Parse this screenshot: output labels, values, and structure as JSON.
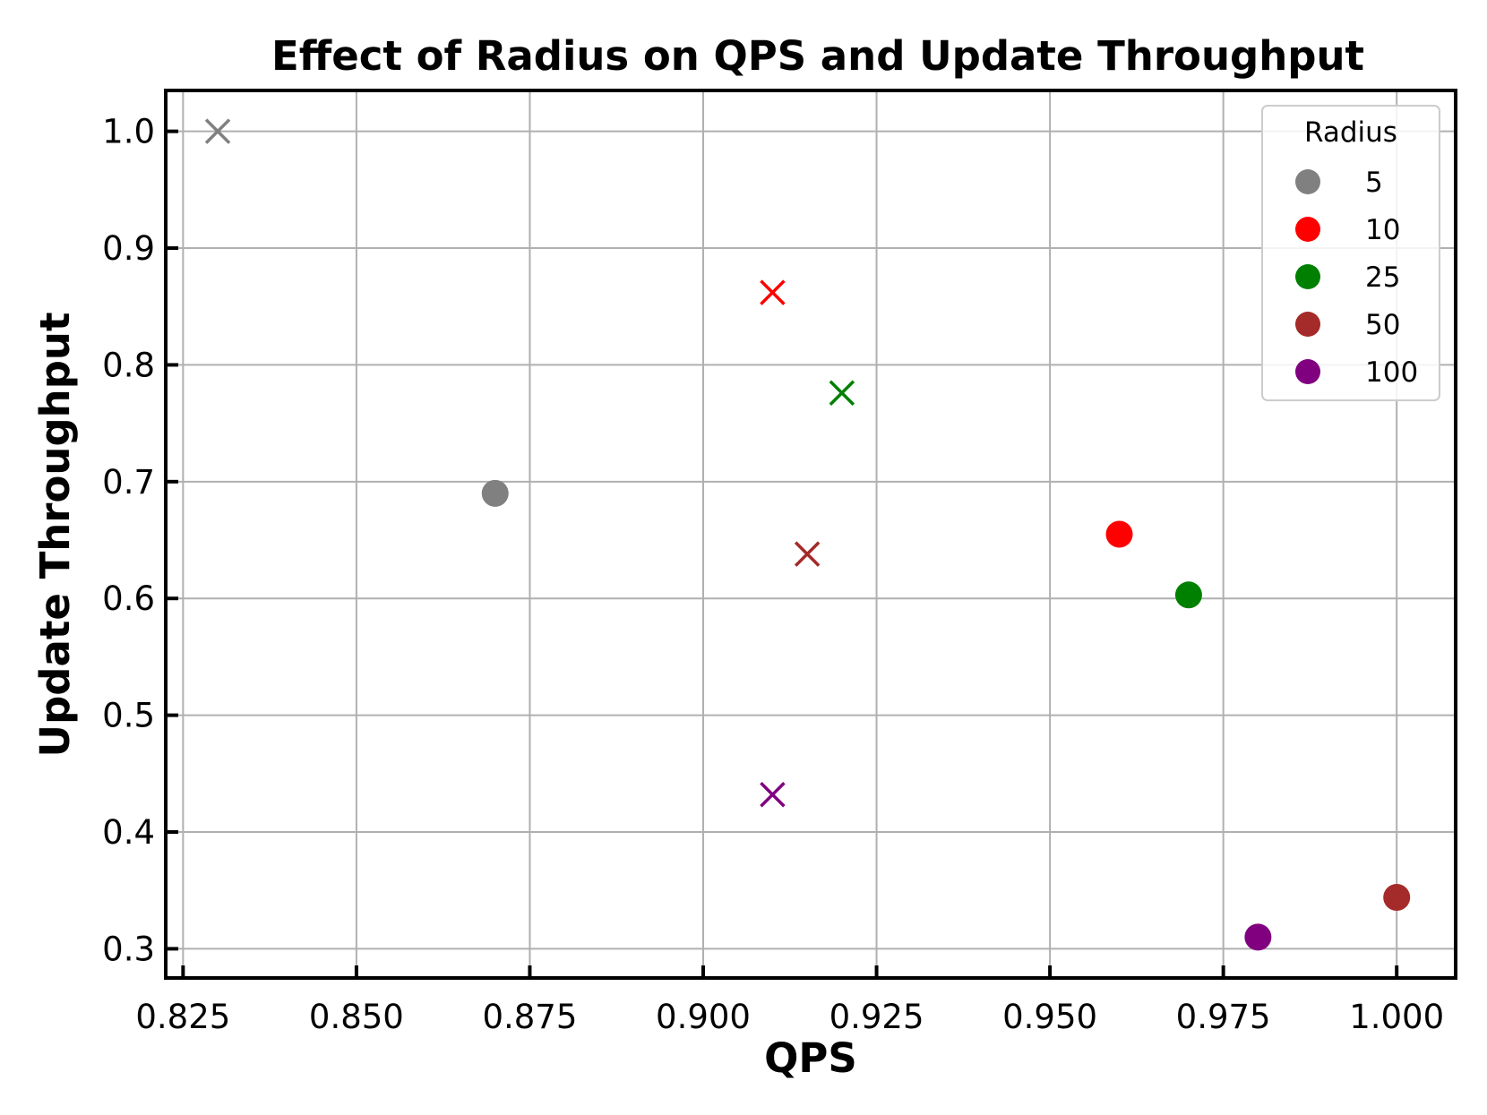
{
  "chart_data": {
    "type": "scatter",
    "title": "Effect of Radius on QPS and Update Throughput",
    "xlabel": "QPS",
    "ylabel": "Update Throughput",
    "xlim": [
      0.8225,
      1.0085
    ],
    "ylim": [
      0.275,
      1.035
    ],
    "xticks": [
      "0.825",
      "0.850",
      "0.875",
      "0.900",
      "0.925",
      "0.950",
      "0.975",
      "1.000"
    ],
    "yticks": [
      "0.3",
      "0.4",
      "0.5",
      "0.6",
      "0.7",
      "0.8",
      "0.9",
      "1.0"
    ],
    "grid": true,
    "legend": {
      "title": "Radius",
      "placement": "top-right",
      "entries": [
        "5",
        "10",
        "25",
        "50",
        "100"
      ]
    },
    "series": [
      {
        "name": "5",
        "color": "#808080",
        "points": [
          {
            "x": 0.87,
            "y": 0.69,
            "marker": "circle"
          },
          {
            "x": 0.83,
            "y": 1.0,
            "marker": "x"
          }
        ]
      },
      {
        "name": "10",
        "color": "#ff0000",
        "points": [
          {
            "x": 0.96,
            "y": 0.655,
            "marker": "circle"
          },
          {
            "x": 0.91,
            "y": 0.862,
            "marker": "x"
          }
        ]
      },
      {
        "name": "25",
        "color": "#008000",
        "points": [
          {
            "x": 0.97,
            "y": 0.603,
            "marker": "circle"
          },
          {
            "x": 0.92,
            "y": 0.776,
            "marker": "x"
          }
        ]
      },
      {
        "name": "50",
        "color": "#a52a2a",
        "points": [
          {
            "x": 1.0,
            "y": 0.344,
            "marker": "circle"
          },
          {
            "x": 0.915,
            "y": 0.638,
            "marker": "x"
          }
        ]
      },
      {
        "name": "100",
        "color": "#800080",
        "points": [
          {
            "x": 0.98,
            "y": 0.31,
            "marker": "circle"
          },
          {
            "x": 0.91,
            "y": 0.432,
            "marker": "x"
          }
        ]
      }
    ]
  }
}
